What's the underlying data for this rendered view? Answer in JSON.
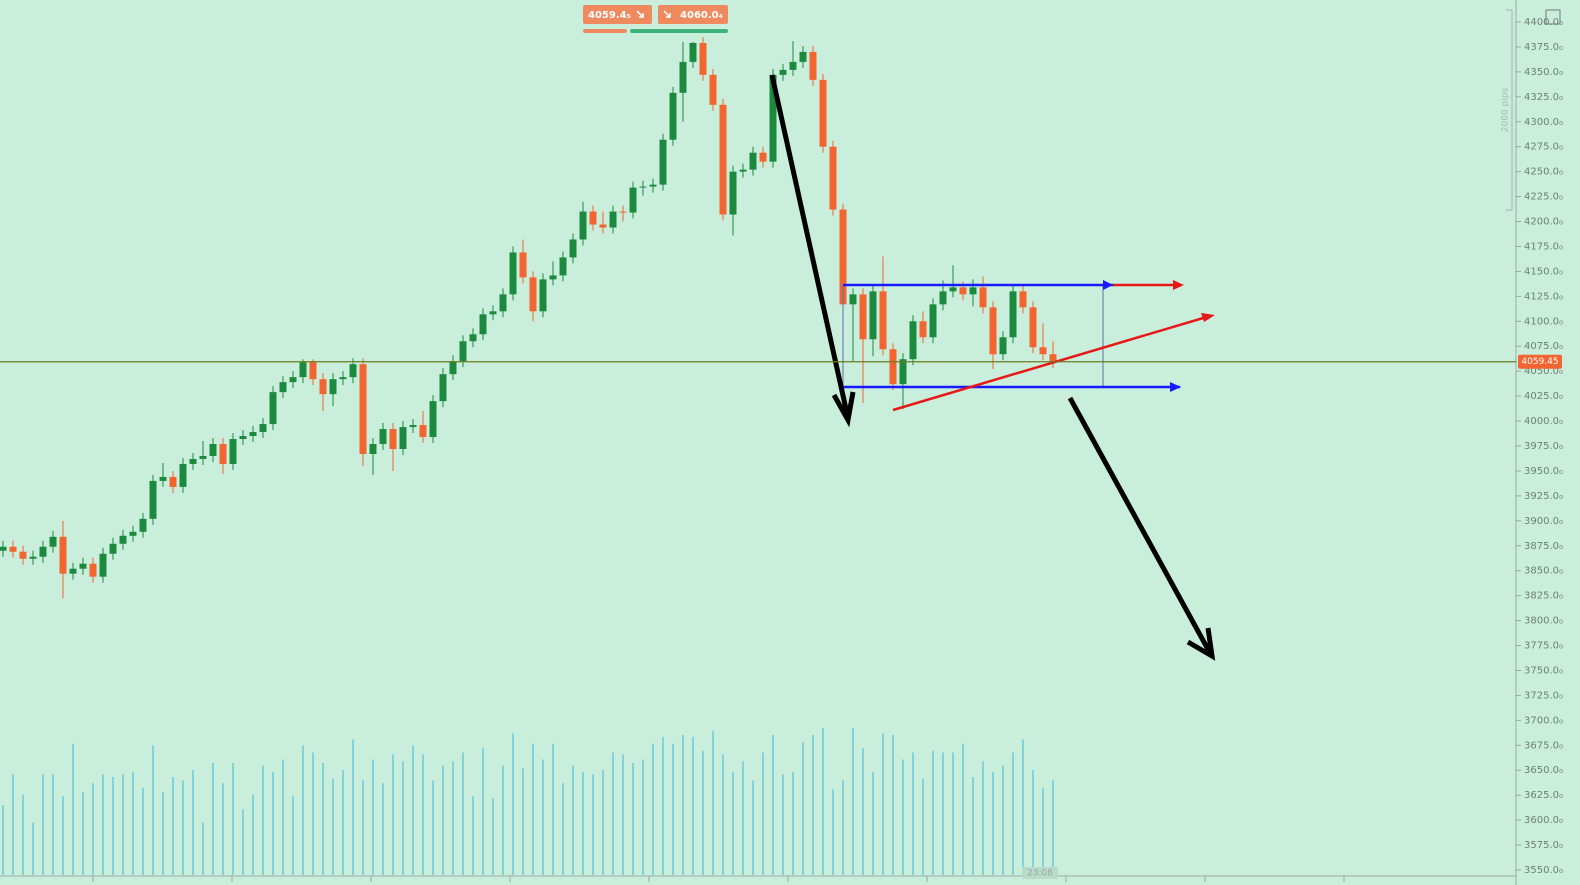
{
  "chart_data": {
    "type": "candlestick",
    "bid_label": "4059.4₅",
    "ask_label": "4060.0₄",
    "pips_label": "2000 pips",
    "time_label": "23:08",
    "last_price": 4059.45,
    "up_color": "#1b8a3e",
    "down_color": "#f26430",
    "volume_color": "#3cb7dc",
    "line_color": "#6b7d1c",
    "ylim": [
      3550,
      4400
    ],
    "volume_ylim": [
      0,
      200
    ],
    "yticks": [
      {
        "value": 3550,
        "label": "3550.0₀"
      },
      {
        "value": 3575,
        "label": "3575.0₀"
      },
      {
        "value": 3600,
        "label": "3600.0₀"
      },
      {
        "value": 3625,
        "label": "3625.0₀"
      },
      {
        "value": 3650,
        "label": "3650.0₀"
      },
      {
        "value": 3675,
        "label": "3675.0₀"
      },
      {
        "value": 3700,
        "label": "3700.0₀"
      },
      {
        "value": 3725,
        "label": "3725.0₀"
      },
      {
        "value": 3750,
        "label": "3750.0₀"
      },
      {
        "value": 3775,
        "label": "3775.0₀"
      },
      {
        "value": 3800,
        "label": "3800.0₀"
      },
      {
        "value": 3825,
        "label": "3825.0₀"
      },
      {
        "value": 3850,
        "label": "3850.0₀"
      },
      {
        "value": 3875,
        "label": "3875.0₀"
      },
      {
        "value": 3900,
        "label": "3900.0₀"
      },
      {
        "value": 3925,
        "label": "3925.0₀"
      },
      {
        "value": 3950,
        "label": "3950.0₀"
      },
      {
        "value": 3975,
        "label": "3975.0₀"
      },
      {
        "value": 4000,
        "label": "4000.0₀"
      },
      {
        "value": 4025,
        "label": "4025.0₀"
      },
      {
        "value": 4050,
        "label": "4050.0₀"
      },
      {
        "value": 4075,
        "label": "4075.0₀"
      },
      {
        "value": 4100,
        "label": "4100.0₀"
      },
      {
        "value": 4125,
        "label": "4125.0₀"
      },
      {
        "value": 4150,
        "label": "4150.0₀"
      },
      {
        "value": 4175,
        "label": "4175.0₀"
      },
      {
        "value": 4200,
        "label": "4200.0₀"
      },
      {
        "value": 4225,
        "label": "4225.0₀"
      },
      {
        "value": 4250,
        "label": "4250.0₀"
      },
      {
        "value": 4275,
        "label": "4275.0₀"
      },
      {
        "value": 4300,
        "label": "4300.0₀"
      },
      {
        "value": 4325,
        "label": "4325.0₀"
      },
      {
        "value": 4350,
        "label": "4350.0₀"
      },
      {
        "value": 4375,
        "label": "4375.0₀"
      },
      {
        "value": 4400,
        "label": "4400.0₀"
      }
    ],
    "open": [
      3870,
      3874,
      3869,
      3862,
      3864,
      3874,
      3884,
      3847,
      3852,
      3857,
      3844,
      3867,
      3877,
      3885,
      3889,
      3902,
      3940,
      3944,
      3934,
      3957,
      3962,
      3965,
      3977,
      3957,
      3982,
      3985,
      3989,
      3997,
      4029,
      4039,
      4044,
      4059,
      4042,
      4027,
      4042,
      4044,
      4057,
      3967,
      3977,
      3992,
      3972,
      3994,
      3996,
      3984,
      4020,
      4047,
      4060,
      4080,
      4087,
      4107,
      4110,
      4127,
      4169,
      4144,
      4110,
      4142,
      4146,
      4164,
      4182,
      4210,
      4197,
      4194,
      4210,
      4209,
      4234,
      4235,
      4237,
      4282,
      4329,
      4360,
      4379,
      4347,
      4317,
      4207,
      4250,
      4252,
      4269,
      4260,
      4347,
      4352,
      4360,
      4370,
      4342,
      4275,
      4212,
      4117,
      4127,
      4082,
      4130,
      4072,
      4037,
      4062,
      4100,
      4084,
      4117,
      4130,
      4134,
      4127,
      4134,
      4114,
      4067,
      4084,
      4130,
      4114,
      4074,
      4067
    ],
    "high": [
      3880,
      3880,
      3875,
      3870,
      3880,
      3890,
      3900,
      3858,
      3863,
      3863,
      3873,
      3883,
      3891,
      3895,
      3908,
      3946,
      3958,
      3950,
      3963,
      3968,
      3980,
      3983,
      3983,
      3988,
      3991,
      3995,
      4003,
      4035,
      4045,
      4050,
      4062,
      4062,
      4048,
      4048,
      4050,
      4063,
      4063,
      3983,
      3998,
      3998,
      4000,
      4002,
      4010,
      4026,
      4053,
      4066,
      4086,
      4093,
      4113,
      4116,
      4133,
      4175,
      4182,
      4150,
      4148,
      4160,
      4170,
      4188,
      4220,
      4216,
      4210,
      4216,
      4216,
      4240,
      4241,
      4243,
      4288,
      4335,
      4380,
      4380,
      4385,
      4353,
      4323,
      4256,
      4258,
      4275,
      4275,
      4353,
      4358,
      4381,
      4376,
      4376,
      4348,
      4281,
      4218,
      4133,
      4133,
      4136,
      4165,
      4078,
      4068,
      4106,
      4110,
      4123,
      4141,
      4156,
      4140,
      4142,
      4145,
      4120,
      4090,
      4136,
      4136,
      4120,
      4098,
      4080
    ],
    "low": [
      3864,
      3863,
      3856,
      3856,
      3858,
      3868,
      3822,
      3841,
      3846,
      3838,
      3838,
      3861,
      3871,
      3879,
      3883,
      3896,
      3934,
      3928,
      3928,
      3951,
      3956,
      3959,
      3947,
      3951,
      3976,
      3979,
      3983,
      3991,
      4023,
      4033,
      4038,
      4036,
      4010,
      4015,
      4036,
      4038,
      3955,
      3946,
      3971,
      3950,
      3966,
      3988,
      3978,
      3978,
      4014,
      4041,
      4054,
      4074,
      4081,
      4101,
      4104,
      4121,
      4138,
      4100,
      4104,
      4136,
      4140,
      4158,
      4176,
      4191,
      4188,
      4188,
      4200,
      4203,
      4226,
      4229,
      4231,
      4276,
      4300,
      4354,
      4341,
      4311,
      4201,
      4186,
      4244,
      4246,
      4254,
      4254,
      4341,
      4346,
      4354,
      4336,
      4269,
      4206,
      4111,
      4060,
      4018,
      4065,
      4066,
      4031,
      4012,
      4056,
      4078,
      4078,
      4111,
      4124,
      4121,
      4115,
      4108,
      4052,
      4061,
      4078,
      4108,
      4068,
      4061,
      4053
    ],
    "close": [
      3874,
      3869,
      3862,
      3864,
      3874,
      3884,
      3847,
      3852,
      3857,
      3844,
      3867,
      3877,
      3885,
      3889,
      3902,
      3940,
      3944,
      3934,
      3957,
      3962,
      3965,
      3977,
      3957,
      3982,
      3985,
      3989,
      3997,
      4029,
      4039,
      4044,
      4059,
      4042,
      4027,
      4042,
      4044,
      4057,
      3967,
      3977,
      3992,
      3972,
      3994,
      3996,
      3984,
      4020,
      4047,
      4060,
      4080,
      4087,
      4107,
      4110,
      4127,
      4169,
      4144,
      4110,
      4142,
      4146,
      4164,
      4182,
      4210,
      4197,
      4194,
      4210,
      4209,
      4234,
      4235,
      4237,
      4282,
      4329,
      4360,
      4379,
      4347,
      4317,
      4207,
      4250,
      4252,
      4269,
      4260,
      4347,
      4352,
      4360,
      4370,
      4342,
      4275,
      4212,
      4117,
      4127,
      4082,
      4130,
      4072,
      4037,
      4062,
      4100,
      4084,
      4117,
      4130,
      4134,
      4127,
      4134,
      4114,
      4067,
      4084,
      4130,
      4114,
      4074,
      4067,
      4059.45
    ],
    "volume": [
      80,
      115,
      92,
      60,
      115,
      115,
      90,
      150,
      95,
      105,
      115,
      112,
      115,
      118,
      100,
      148,
      95,
      112,
      108,
      120,
      60,
      128,
      105,
      128,
      75,
      92,
      125,
      118,
      132,
      90,
      148,
      140,
      128,
      110,
      120,
      155,
      108,
      132,
      105,
      138,
      130,
      148,
      138,
      108,
      125,
      130,
      140,
      90,
      145,
      88,
      125,
      162,
      122,
      150,
      132,
      150,
      105,
      125,
      118,
      115,
      120,
      140,
      138,
      128,
      132,
      150,
      158,
      150,
      160,
      158,
      142,
      165,
      138,
      118,
      130,
      108,
      140,
      160,
      115,
      118,
      152,
      160,
      168,
      98,
      108,
      168,
      145,
      118,
      162,
      160,
      132,
      140,
      110,
      142,
      140,
      140,
      150,
      112,
      130,
      118,
      125,
      140,
      155,
      120,
      100,
      108
    ]
  }
}
